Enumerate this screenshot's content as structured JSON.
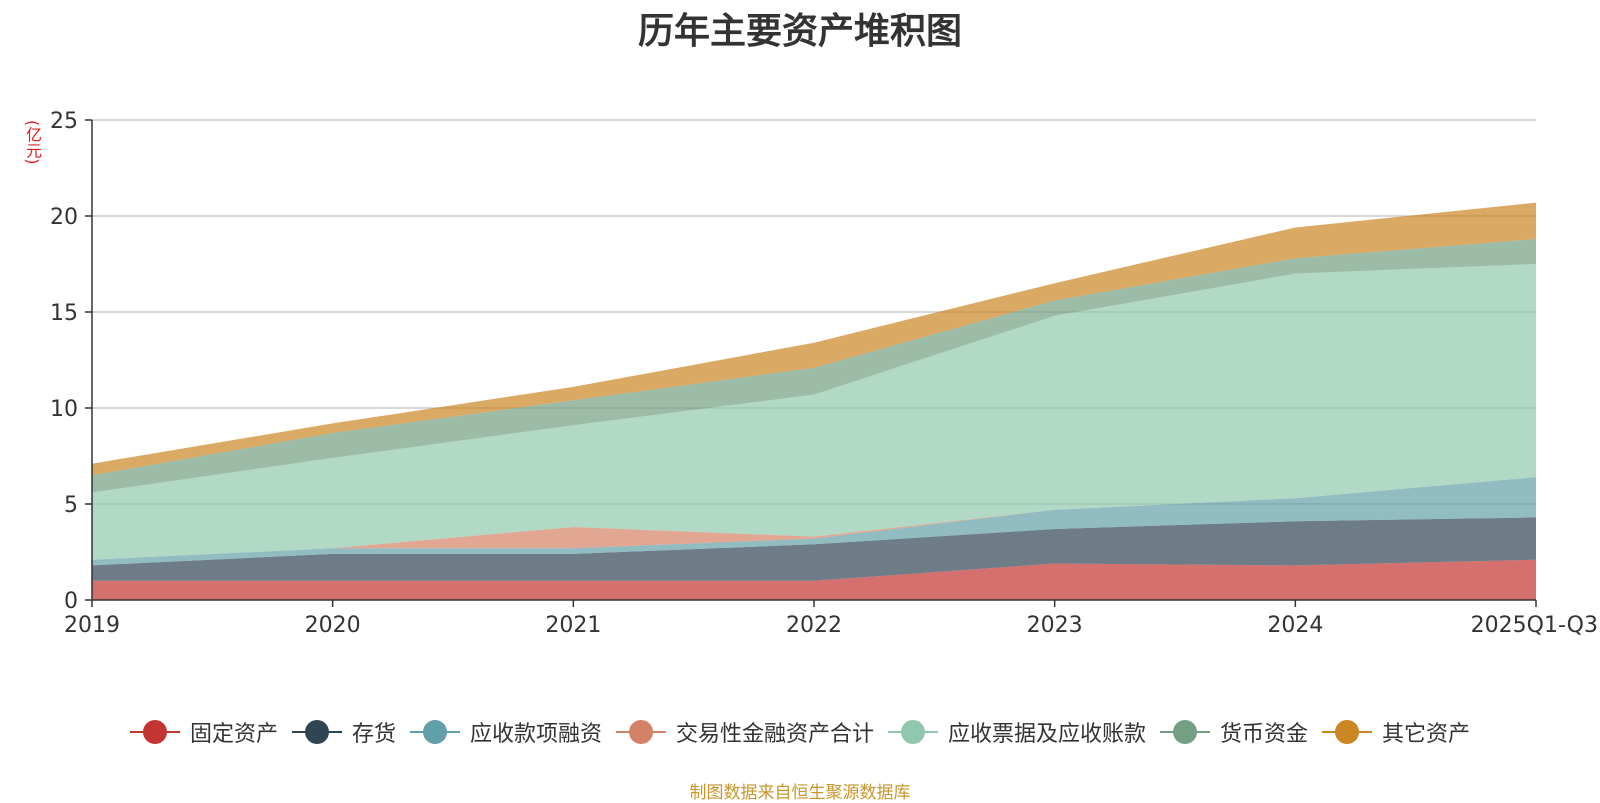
{
  "chart_data": {
    "type": "area",
    "stacked": true,
    "title": "历年主要资产堆积图",
    "ylabel": "(亿元)",
    "xlabel": "",
    "categories": [
      "2019",
      "2020",
      "2021",
      "2022",
      "2023",
      "2024",
      "2025Q1-Q3"
    ],
    "ylim": [
      0,
      25
    ],
    "yticks": [
      0,
      5,
      10,
      15,
      20,
      25
    ],
    "grid": true,
    "legend_position": "bottom",
    "series": [
      {
        "name": "固定资产",
        "color": "#c23531",
        "values": [
          1.0,
          1.0,
          1.0,
          1.0,
          1.9,
          1.8,
          2.1
        ]
      },
      {
        "name": "存货",
        "color": "#2f4554",
        "values": [
          0.8,
          1.4,
          1.4,
          1.9,
          1.8,
          2.3,
          2.2
        ]
      },
      {
        "name": "应收款项融资",
        "color": "#61a0a8",
        "values": [
          0.3,
          0.3,
          0.3,
          0.3,
          1.0,
          1.2,
          2.1
        ]
      },
      {
        "name": "交易性金融资产合计",
        "color": "#d48265",
        "values": [
          0,
          0,
          1.1,
          0.1,
          0,
          0,
          0
        ]
      },
      {
        "name": "应收票据及应收账款",
        "color": "#91c7ae",
        "values": [
          3.5,
          4.7,
          5.3,
          7.4,
          10.1,
          11.7,
          11.1
        ]
      },
      {
        "name": "货币资金",
        "color": "#749f83",
        "values": [
          0.9,
          1.3,
          1.3,
          1.4,
          0.8,
          0.8,
          1.3
        ]
      },
      {
        "name": "其它资产",
        "color": "#ca8622",
        "values": [
          0.6,
          0.5,
          0.7,
          1.3,
          0.9,
          1.6,
          1.9
        ]
      }
    ],
    "source_note": "制图数据来自恒生聚源数据库"
  }
}
